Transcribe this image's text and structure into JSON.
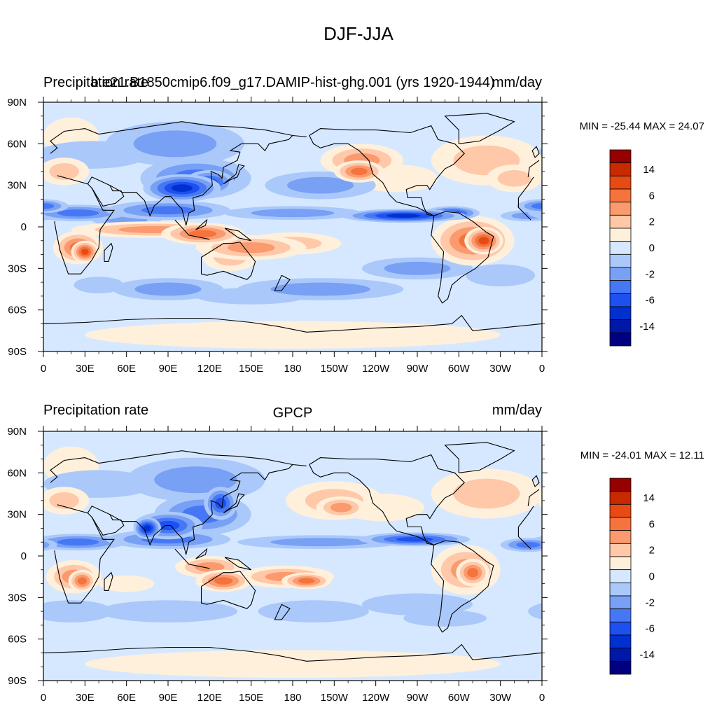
{
  "title": "DJF-JJA",
  "colors": {
    "levels": [
      "#000080",
      "#0018a8",
      "#0030d0",
      "#1e50f0",
      "#4678f5",
      "#78a0f5",
      "#aac8fa",
      "#d6e8ff",
      "#fff0dc",
      "#ffc8a8",
      "#fa9a6e",
      "#f5733c",
      "#e84a14",
      "#c82a00",
      "#960000"
    ],
    "coast": "#000000",
    "axis": "#000000"
  },
  "panels": [
    {
      "name": "top",
      "left_title": "Precipitation rate",
      "center_title": "b.e21.B1850cmip6.f09_g17.DAMIP-hist-ghg.001 (yrs 1920-1944)",
      "right_title": "mm/day",
      "stats": "MIN = -25.44 MAX =  24.07"
    },
    {
      "name": "bottom",
      "left_title": "Precipitation rate",
      "center_title": "GPCP",
      "right_title": "mm/day",
      "stats": "MIN = -24.01 MAX =  12.11"
    }
  ],
  "colorbar": {
    "labels": [
      "14",
      "6",
      "2",
      "0",
      "-2",
      "-6",
      "-14"
    ]
  },
  "chart_data": [
    {
      "type": "heatmap",
      "projection": "cylindrical-equidistant",
      "field": "precipitation rate difference DJF-JJA",
      "units": "mm/day",
      "xticks": [
        "0",
        "30E",
        "60E",
        "90E",
        "120E",
        "150E",
        "180",
        "150W",
        "120W",
        "90W",
        "60W",
        "30W",
        "0"
      ],
      "yticks": [
        "90N",
        "60N",
        "30N",
        "0",
        "30S",
        "60S",
        "90S"
      ],
      "xlim": [
        0,
        360
      ],
      "ylim": [
        -90,
        90
      ],
      "contour_levels": [
        -20,
        -14,
        -10,
        -6,
        -4,
        -2,
        -1,
        0,
        1,
        2,
        4,
        6,
        10,
        14,
        20
      ],
      "min": -25.44,
      "max": 24.07
    },
    {
      "type": "heatmap",
      "projection": "cylindrical-equidistant",
      "field": "precipitation rate difference DJF-JJA",
      "units": "mm/day",
      "xticks": [
        "0",
        "30E",
        "60E",
        "90E",
        "120E",
        "150E",
        "180",
        "150W",
        "120W",
        "90W",
        "60W",
        "30W",
        "0"
      ],
      "yticks": [
        "90N",
        "60N",
        "30N",
        "0",
        "30S",
        "60S",
        "90S"
      ],
      "xlim": [
        0,
        360
      ],
      "ylim": [
        -90,
        90
      ],
      "contour_levels": [
        -20,
        -14,
        -10,
        -6,
        -4,
        -2,
        -1,
        0,
        1,
        2,
        4,
        6,
        10,
        14,
        20
      ],
      "min": -24.01,
      "max": 12.11
    }
  ]
}
